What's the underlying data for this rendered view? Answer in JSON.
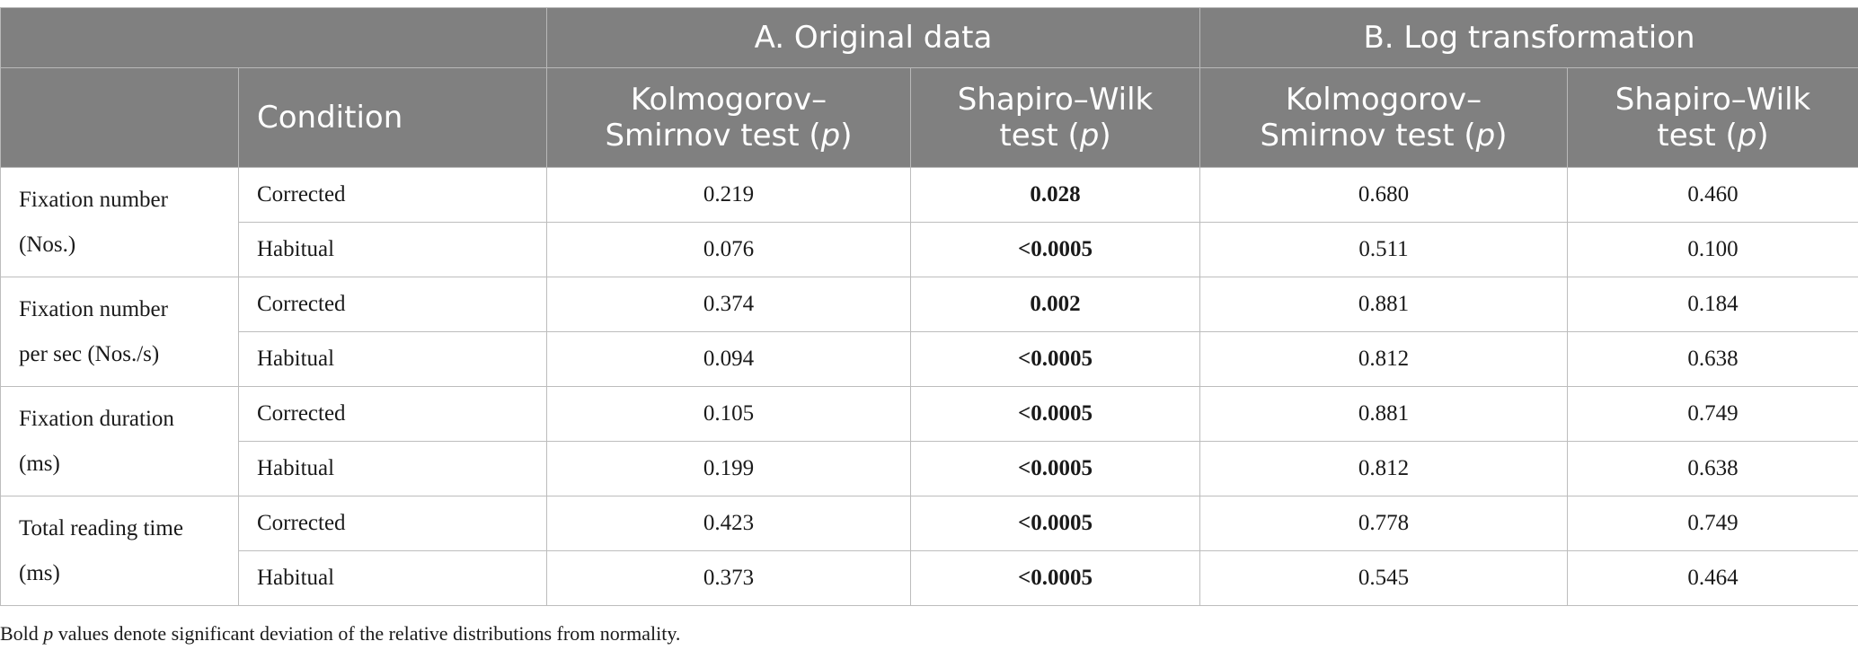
{
  "header": {
    "group_a": "A. Original data",
    "group_b": "B. Log transformation",
    "condition": "Condition",
    "ks_line1": "Kolmogorov–",
    "ks_line2": "Smirnov test (",
    "sw_line1": "Shapiro–Wilk",
    "sw_line2": "test (",
    "p": "p",
    "close": ")"
  },
  "rows": [
    {
      "measure1": "Fixation number",
      "measure2": "(Nos.)",
      "r1": {
        "condition": "Corrected",
        "a_ks": "0.219",
        "a_sw": "0.028",
        "b_ks": "0.680",
        "b_sw": "0.460"
      },
      "r2": {
        "condition": "Habitual",
        "a_ks": "0.076",
        "a_sw": "<0.0005",
        "b_ks": "0.511",
        "b_sw": "0.100"
      }
    },
    {
      "measure1": "Fixation number",
      "measure2": "per sec (Nos./s)",
      "r1": {
        "condition": "Corrected",
        "a_ks": "0.374",
        "a_sw": "0.002",
        "b_ks": "0.881",
        "b_sw": "0.184"
      },
      "r2": {
        "condition": "Habitual",
        "a_ks": "0.094",
        "a_sw": "<0.0005",
        "b_ks": "0.812",
        "b_sw": "0.638"
      }
    },
    {
      "measure1": "Fixation duration",
      "measure2": "(ms)",
      "r1": {
        "condition": "Corrected",
        "a_ks": "0.105",
        "a_sw": "<0.0005",
        "b_ks": "0.881",
        "b_sw": "0.749"
      },
      "r2": {
        "condition": "Habitual",
        "a_ks": "0.199",
        "a_sw": "<0.0005",
        "b_ks": "0.812",
        "b_sw": "0.638"
      }
    },
    {
      "measure1": "Total reading time",
      "measure2": "(ms)",
      "r1": {
        "condition": "Corrected",
        "a_ks": "0.423",
        "a_sw": "<0.0005",
        "b_ks": "0.778",
        "b_sw": "0.749"
      },
      "r2": {
        "condition": "Habitual",
        "a_ks": "0.373",
        "a_sw": "<0.0005",
        "b_ks": "0.545",
        "b_sw": "0.464"
      }
    }
  ],
  "footnote": {
    "prefix": "Bold ",
    "p": "p",
    "suffix": " values denote significant deviation of the relative distributions from normality."
  }
}
